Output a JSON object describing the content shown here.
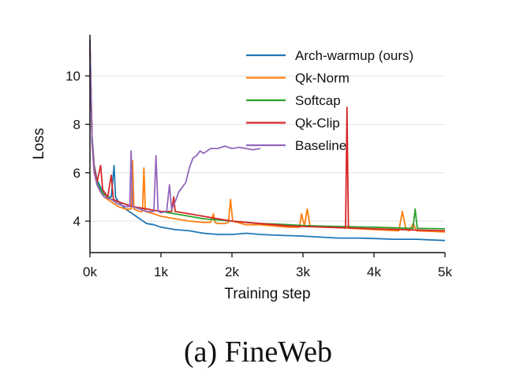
{
  "caption": "(a) FineWeb",
  "chart_data": {
    "type": "line",
    "xlabel": "Training step",
    "ylabel": "Loss",
    "xlim": [
      0,
      5000
    ],
    "ylim": [
      2.7,
      11.7
    ],
    "x_ticks": [
      0,
      1000,
      2000,
      3000,
      4000,
      5000
    ],
    "x_tick_labels": [
      "0k",
      "1k",
      "2k",
      "3k",
      "4k",
      "5k"
    ],
    "y_ticks": [
      4,
      6,
      8,
      10
    ],
    "y_tick_labels": [
      "4",
      "6",
      "8",
      "10"
    ],
    "grid": "horizontal",
    "legend_position": "top-right",
    "series": [
      {
        "name": "Arch-warmup (ours)",
        "color": "#1f77b4",
        "points": [
          [
            0,
            11.5
          ],
          [
            30,
            7.5
          ],
          [
            60,
            6.3
          ],
          [
            100,
            5.7
          ],
          [
            150,
            5.4
          ],
          [
            200,
            5.2
          ],
          [
            250,
            5.0
          ],
          [
            300,
            5.0
          ],
          [
            340,
            6.3
          ],
          [
            360,
            5.0
          ],
          [
            400,
            4.8
          ],
          [
            500,
            4.5
          ],
          [
            600,
            4.3
          ],
          [
            700,
            4.1
          ],
          [
            800,
            3.9
          ],
          [
            900,
            3.85
          ],
          [
            1000,
            3.75
          ],
          [
            1200,
            3.65
          ],
          [
            1400,
            3.6
          ],
          [
            1600,
            3.5
          ],
          [
            1800,
            3.45
          ],
          [
            2000,
            3.45
          ],
          [
            2200,
            3.5
          ],
          [
            2400,
            3.45
          ],
          [
            2600,
            3.42
          ],
          [
            2800,
            3.4
          ],
          [
            3000,
            3.38
          ],
          [
            3200,
            3.35
          ],
          [
            3500,
            3.3
          ],
          [
            3800,
            3.3
          ],
          [
            4000,
            3.28
          ],
          [
            4300,
            3.25
          ],
          [
            4600,
            3.25
          ],
          [
            5000,
            3.2
          ]
        ]
      },
      {
        "name": "Qk-Norm",
        "color": "#ff7f0e",
        "points": [
          [
            0,
            11.2
          ],
          [
            30,
            7.2
          ],
          [
            60,
            6.0
          ],
          [
            100,
            5.5
          ],
          [
            150,
            5.2
          ],
          [
            200,
            5.0
          ],
          [
            300,
            4.8
          ],
          [
            400,
            4.6
          ],
          [
            500,
            4.5
          ],
          [
            580,
            4.5
          ],
          [
            600,
            6.5
          ],
          [
            620,
            4.5
          ],
          [
            700,
            4.4
          ],
          [
            740,
            4.4
          ],
          [
            760,
            6.2
          ],
          [
            780,
            4.4
          ],
          [
            900,
            4.3
          ],
          [
            1000,
            4.2
          ],
          [
            1200,
            4.1
          ],
          [
            1400,
            4.0
          ],
          [
            1600,
            3.95
          ],
          [
            1700,
            3.95
          ],
          [
            1740,
            4.3
          ],
          [
            1760,
            3.95
          ],
          [
            1800,
            3.9
          ],
          [
            1900,
            3.9
          ],
          [
            1950,
            3.95
          ],
          [
            1980,
            4.9
          ],
          [
            2010,
            4.0
          ],
          [
            2200,
            3.85
          ],
          [
            2400,
            3.85
          ],
          [
            2600,
            3.8
          ],
          [
            2800,
            3.75
          ],
          [
            2950,
            3.75
          ],
          [
            2980,
            4.3
          ],
          [
            3020,
            3.8
          ],
          [
            3060,
            4.5
          ],
          [
            3100,
            3.8
          ],
          [
            3400,
            3.75
          ],
          [
            3700,
            3.7
          ],
          [
            4000,
            3.65
          ],
          [
            4350,
            3.6
          ],
          [
            4400,
            4.4
          ],
          [
            4450,
            3.65
          ],
          [
            4500,
            3.6
          ],
          [
            4550,
            3.9
          ],
          [
            4600,
            3.6
          ],
          [
            5000,
            3.55
          ]
        ]
      },
      {
        "name": "Softcap",
        "color": "#2ca02c",
        "points": [
          [
            0,
            11.2
          ],
          [
            30,
            7.3
          ],
          [
            60,
            6.2
          ],
          [
            100,
            5.6
          ],
          [
            150,
            5.3
          ],
          [
            200,
            5.1
          ],
          [
            300,
            4.9
          ],
          [
            400,
            4.8
          ],
          [
            500,
            4.7
          ],
          [
            600,
            4.6
          ],
          [
            800,
            4.5
          ],
          [
            1000,
            4.4
          ],
          [
            1200,
            4.3
          ],
          [
            1400,
            4.2
          ],
          [
            1600,
            4.1
          ],
          [
            1800,
            4.05
          ],
          [
            2000,
            4.0
          ],
          [
            2200,
            3.95
          ],
          [
            2400,
            3.9
          ],
          [
            2600,
            3.88
          ],
          [
            2800,
            3.85
          ],
          [
            3000,
            3.82
          ],
          [
            3200,
            3.8
          ],
          [
            3500,
            3.78
          ],
          [
            3800,
            3.76
          ],
          [
            4000,
            3.75
          ],
          [
            4300,
            3.72
          ],
          [
            4550,
            3.7
          ],
          [
            4580,
            4.5
          ],
          [
            4610,
            3.7
          ],
          [
            5000,
            3.68
          ]
        ]
      },
      {
        "name": "Qk-Clip",
        "color": "#d62728",
        "points": [
          [
            0,
            11.2
          ],
          [
            30,
            7.3
          ],
          [
            60,
            6.2
          ],
          [
            100,
            5.6
          ],
          [
            150,
            6.3
          ],
          [
            180,
            5.3
          ],
          [
            250,
            5.0
          ],
          [
            300,
            5.9
          ],
          [
            330,
            4.9
          ],
          [
            400,
            4.8
          ],
          [
            500,
            4.7
          ],
          [
            600,
            4.6
          ],
          [
            800,
            4.5
          ],
          [
            1000,
            4.4
          ],
          [
            1150,
            4.4
          ],
          [
            1180,
            5.0
          ],
          [
            1200,
            4.4
          ],
          [
            1400,
            4.3
          ],
          [
            1600,
            4.2
          ],
          [
            1800,
            4.1
          ],
          [
            2000,
            4.0
          ],
          [
            2200,
            3.95
          ],
          [
            2400,
            3.9
          ],
          [
            2600,
            3.85
          ],
          [
            2800,
            3.8
          ],
          [
            3000,
            3.78
          ],
          [
            3300,
            3.75
          ],
          [
            3600,
            3.72
          ],
          [
            3620,
            8.7
          ],
          [
            3640,
            3.72
          ],
          [
            3800,
            3.7
          ],
          [
            4000,
            3.68
          ],
          [
            4300,
            3.66
          ],
          [
            4600,
            3.63
          ],
          [
            5000,
            3.6
          ]
        ]
      },
      {
        "name": "Baseline",
        "color": "#9467bd",
        "points": [
          [
            0,
            11.3
          ],
          [
            30,
            7.2
          ],
          [
            60,
            6.0
          ],
          [
            100,
            5.5
          ],
          [
            150,
            5.2
          ],
          [
            200,
            5.0
          ],
          [
            300,
            4.9
          ],
          [
            400,
            4.7
          ],
          [
            500,
            4.6
          ],
          [
            560,
            4.6
          ],
          [
            580,
            6.9
          ],
          [
            600,
            4.6
          ],
          [
            700,
            4.5
          ],
          [
            800,
            4.4
          ],
          [
            900,
            4.4
          ],
          [
            930,
            6.7
          ],
          [
            960,
            4.4
          ],
          [
            1000,
            4.35
          ],
          [
            1080,
            4.4
          ],
          [
            1120,
            5.5
          ],
          [
            1150,
            4.5
          ],
          [
            1200,
            4.8
          ],
          [
            1250,
            5.2
          ],
          [
            1300,
            5.4
          ],
          [
            1350,
            5.6
          ],
          [
            1400,
            6.2
          ],
          [
            1450,
            6.6
          ],
          [
            1500,
            6.7
          ],
          [
            1550,
            6.9
          ],
          [
            1600,
            6.8
          ],
          [
            1700,
            7.0
          ],
          [
            1800,
            7.0
          ],
          [
            1900,
            7.1
          ],
          [
            2000,
            7.0
          ],
          [
            2100,
            7.05
          ],
          [
            2200,
            7.0
          ],
          [
            2300,
            6.95
          ],
          [
            2400,
            7.0
          ]
        ]
      }
    ]
  }
}
